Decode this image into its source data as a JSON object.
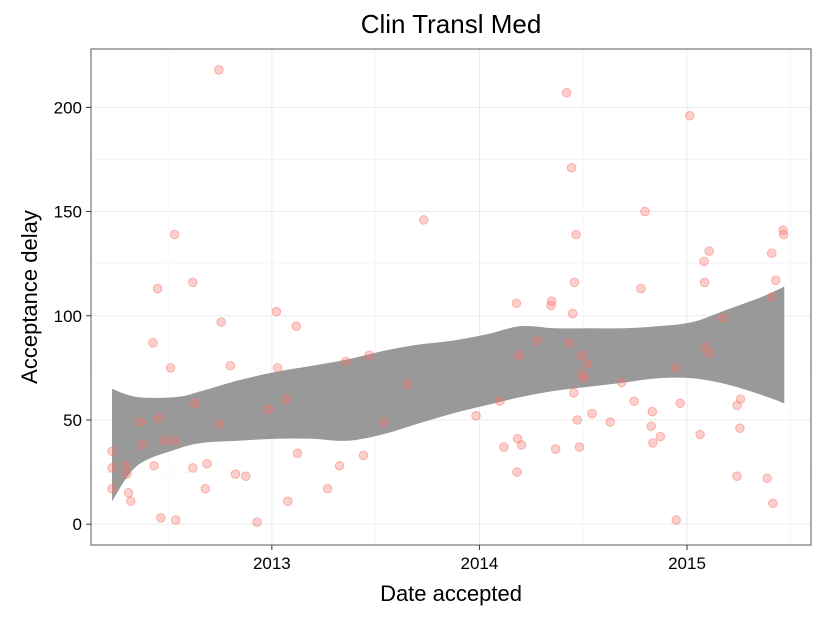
{
  "chart_data": {
    "type": "scatter",
    "title": "Clin Transl Med",
    "xlabel": "Date accepted",
    "ylabel": "Acceptance delay",
    "x_ticks": [
      {
        "label": "2013",
        "value": "2013-01-01"
      },
      {
        "label": "2014",
        "value": "2014-01-01"
      },
      {
        "label": "2015",
        "value": "2015-01-01"
      }
    ],
    "y_ticks": [
      0,
      50,
      100,
      150,
      200
    ],
    "xlim": [
      "2012-02-18",
      "2015-08-07"
    ],
    "ylim": [
      -10,
      228
    ],
    "grid": true,
    "legend": "none",
    "point_color": "#F8766D",
    "ribbon_color": "#7F7F7F",
    "points": [
      {
        "x": "2012-03-26",
        "y": 35
      },
      {
        "x": "2012-03-26",
        "y": 27
      },
      {
        "x": "2012-03-26",
        "y": 17
      },
      {
        "x": "2012-04-19",
        "y": 28
      },
      {
        "x": "2012-04-21",
        "y": 24
      },
      {
        "x": "2012-04-24",
        "y": 15
      },
      {
        "x": "2012-04-28",
        "y": 11
      },
      {
        "x": "2012-05-15",
        "y": 49
      },
      {
        "x": "2012-05-18",
        "y": 38
      },
      {
        "x": "2012-06-06",
        "y": 87
      },
      {
        "x": "2012-06-08",
        "y": 28
      },
      {
        "x": "2012-06-14",
        "y": 113
      },
      {
        "x": "2012-06-16",
        "y": 51
      },
      {
        "x": "2012-06-20",
        "y": 3
      },
      {
        "x": "2012-06-26",
        "y": 40
      },
      {
        "x": "2012-07-07",
        "y": 75
      },
      {
        "x": "2012-07-14",
        "y": 139
      },
      {
        "x": "2012-07-15",
        "y": 40
      },
      {
        "x": "2012-07-16",
        "y": 2
      },
      {
        "x": "2012-08-15",
        "y": 116
      },
      {
        "x": "2012-08-15",
        "y": 27
      },
      {
        "x": "2012-08-18",
        "y": 58
      },
      {
        "x": "2012-09-06",
        "y": 17
      },
      {
        "x": "2012-09-09",
        "y": 29
      },
      {
        "x": "2012-09-30",
        "y": 218
      },
      {
        "x": "2012-10-01",
        "y": 48
      },
      {
        "x": "2012-10-04",
        "y": 97
      },
      {
        "x": "2012-10-20",
        "y": 76
      },
      {
        "x": "2012-10-29",
        "y": 24
      },
      {
        "x": "2012-11-16",
        "y": 23
      },
      {
        "x": "2012-12-06",
        "y": 1
      },
      {
        "x": "2012-12-26",
        "y": 55
      },
      {
        "x": "2013-01-09",
        "y": 102
      },
      {
        "x": "2013-01-11",
        "y": 75
      },
      {
        "x": "2013-01-26",
        "y": 60
      },
      {
        "x": "2013-01-29",
        "y": 11
      },
      {
        "x": "2013-02-13",
        "y": 95
      },
      {
        "x": "2013-02-15",
        "y": 34
      },
      {
        "x": "2013-04-09",
        "y": 17
      },
      {
        "x": "2013-04-30",
        "y": 28
      },
      {
        "x": "2013-05-11",
        "y": 78
      },
      {
        "x": "2013-06-11",
        "y": 33
      },
      {
        "x": "2013-06-21",
        "y": 81
      },
      {
        "x": "2013-07-17",
        "y": 49
      },
      {
        "x": "2013-08-27",
        "y": 67
      },
      {
        "x": "2013-09-25",
        "y": 146
      },
      {
        "x": "2013-12-26",
        "y": 52
      },
      {
        "x": "2014-02-06",
        "y": 59
      },
      {
        "x": "2014-02-13",
        "y": 37
      },
      {
        "x": "2014-03-07",
        "y": 106
      },
      {
        "x": "2014-03-08",
        "y": 25
      },
      {
        "x": "2014-03-09",
        "y": 41
      },
      {
        "x": "2014-03-11",
        "y": 81
      },
      {
        "x": "2014-03-16",
        "y": 38
      },
      {
        "x": "2014-04-12",
        "y": 88
      },
      {
        "x": "2014-05-07",
        "y": 105
      },
      {
        "x": "2014-05-08",
        "y": 107
      },
      {
        "x": "2014-05-15",
        "y": 36
      },
      {
        "x": "2014-06-03",
        "y": 207
      },
      {
        "x": "2014-06-08",
        "y": 87
      },
      {
        "x": "2014-06-12",
        "y": 171
      },
      {
        "x": "2014-06-14",
        "y": 101
      },
      {
        "x": "2014-06-16",
        "y": 63
      },
      {
        "x": "2014-06-17",
        "y": 116
      },
      {
        "x": "2014-06-20",
        "y": 139
      },
      {
        "x": "2014-06-22",
        "y": 50
      },
      {
        "x": "2014-06-26",
        "y": 37
      },
      {
        "x": "2014-06-30",
        "y": 81
      },
      {
        "x": "2014-06-30",
        "y": 72
      },
      {
        "x": "2014-07-04",
        "y": 70
      },
      {
        "x": "2014-07-10",
        "y": 77
      },
      {
        "x": "2014-07-18",
        "y": 53
      },
      {
        "x": "2014-08-19",
        "y": 49
      },
      {
        "x": "2014-09-08",
        "y": 68
      },
      {
        "x": "2014-09-30",
        "y": 59
      },
      {
        "x": "2014-10-12",
        "y": 113
      },
      {
        "x": "2014-10-19",
        "y": 150
      },
      {
        "x": "2014-10-30",
        "y": 47
      },
      {
        "x": "2014-11-01",
        "y": 54
      },
      {
        "x": "2014-11-02",
        "y": 39
      },
      {
        "x": "2014-11-15",
        "y": 42
      },
      {
        "x": "2014-12-11",
        "y": 75
      },
      {
        "x": "2014-12-13",
        "y": 2
      },
      {
        "x": "2014-12-20",
        "y": 58
      },
      {
        "x": "2015-01-06",
        "y": 196
      },
      {
        "x": "2015-01-24",
        "y": 43
      },
      {
        "x": "2015-01-31",
        "y": 126
      },
      {
        "x": "2015-02-01",
        "y": 116
      },
      {
        "x": "2015-02-02",
        "y": 85
      },
      {
        "x": "2015-02-09",
        "y": 82
      },
      {
        "x": "2015-02-09",
        "y": 131
      },
      {
        "x": "2015-03-05",
        "y": 99
      },
      {
        "x": "2015-03-30",
        "y": 23
      },
      {
        "x": "2015-03-30",
        "y": 57
      },
      {
        "x": "2015-04-04",
        "y": 46
      },
      {
        "x": "2015-04-05",
        "y": 60
      },
      {
        "x": "2015-05-22",
        "y": 22
      },
      {
        "x": "2015-05-30",
        "y": 109
      },
      {
        "x": "2015-05-30",
        "y": 130
      },
      {
        "x": "2015-06-01",
        "y": 10
      },
      {
        "x": "2015-06-06",
        "y": 117
      },
      {
        "x": "2015-06-19",
        "y": 141
      },
      {
        "x": "2015-06-20",
        "y": 139
      }
    ],
    "smooth_ribbon": [
      {
        "x": "2012-03-26",
        "lower": 11,
        "upper": 65
      },
      {
        "x": "2012-05-09",
        "lower": 28,
        "upper": 61
      },
      {
        "x": "2012-07-18",
        "lower": 36,
        "upper": 61
      },
      {
        "x": "2012-09-01",
        "lower": 39,
        "upper": 64
      },
      {
        "x": "2012-11-03",
        "lower": 40,
        "upper": 69
      },
      {
        "x": "2013-01-07",
        "lower": 41,
        "upper": 73
      },
      {
        "x": "2013-03-13",
        "lower": 41,
        "upper": 76
      },
      {
        "x": "2013-05-13",
        "lower": 40,
        "upper": 79
      },
      {
        "x": "2013-07-14",
        "lower": 43,
        "upper": 83
      },
      {
        "x": "2013-09-12",
        "lower": 48,
        "upper": 86
      },
      {
        "x": "2013-11-13",
        "lower": 53,
        "upper": 88
      },
      {
        "x": "2014-01-12",
        "lower": 57,
        "upper": 91
      },
      {
        "x": "2014-03-15",
        "lower": 61,
        "upper": 95
      },
      {
        "x": "2014-05-14",
        "lower": 64,
        "upper": 94
      },
      {
        "x": "2014-07-14",
        "lower": 66,
        "upper": 94
      },
      {
        "x": "2014-09-13",
        "lower": 68,
        "upper": 94
      },
      {
        "x": "2014-11-12",
        "lower": 70,
        "upper": 95
      },
      {
        "x": "2015-01-11",
        "lower": 70,
        "upper": 97
      },
      {
        "x": "2015-03-13",
        "lower": 67,
        "upper": 103
      },
      {
        "x": "2015-05-12",
        "lower": 62,
        "upper": 109
      },
      {
        "x": "2015-06-21",
        "lower": 58,
        "upper": 114
      }
    ]
  }
}
